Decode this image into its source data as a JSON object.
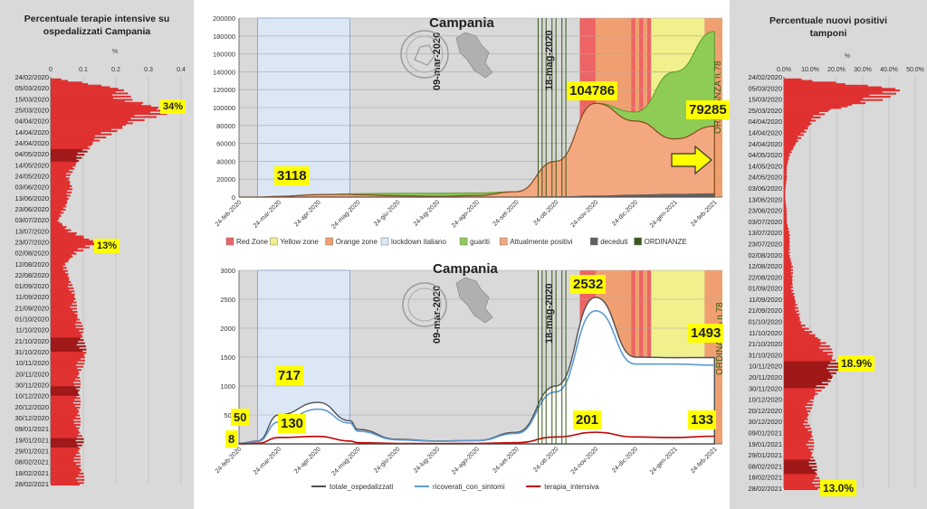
{
  "colors": {
    "red_zone": "#ee6464",
    "yellow_zone": "#f0f08c",
    "orange_zone": "#f0a070",
    "lockdown": "#dbe7f5",
    "guariti": "#8fcc55",
    "positivi": "#f4a880",
    "deceduti": "#606060",
    "ordinanze": "#3a5a1a",
    "bar_red": "#e03030",
    "bar_dark": "#a01818",
    "totale": "#505050",
    "sintomi": "#5b9bd5",
    "terapia": "#c00000",
    "highlight": "#ffff00"
  },
  "left_panel": {
    "title_line1": "Percentuale terapie intensive su",
    "title_line2": "ospedalizzati Campania",
    "unit": "%",
    "ticks": [
      "0",
      "0.1",
      "0.2",
      "0.3",
      "0.4"
    ],
    "tick_values": [
      0,
      0.1,
      0.2,
      0.3,
      0.4
    ],
    "dates": [
      "24/02/2020",
      "05/03/2020",
      "15/03/2020",
      "25/03/2020",
      "04/04/2020",
      "14/04/2020",
      "24/04/2020",
      "04/05/2020",
      "14/05/2020",
      "24/05/2020",
      "03/06/2020",
      "13/06/2020",
      "23/06/2020",
      "03/07/2020",
      "13/07/2020",
      "23/07/2020",
      "02/08/2020",
      "12/08/2020",
      "22/08/2020",
      "01/09/2020",
      "11/09/2020",
      "21/09/2020",
      "01/10/2020",
      "11/10/2020",
      "21/10/2020",
      "31/10/2020",
      "10/11/2020",
      "20/11/2020",
      "30/11/2020",
      "10/12/2020",
      "20/12/2020",
      "30/12/2020",
      "09/01/2021",
      "19/01/2021",
      "29/01/2021",
      "08/02/2021",
      "18/02/2021",
      "28/02/2021"
    ],
    "label_peak": "34%",
    "label_summer": "13%"
  },
  "right_panel": {
    "title_line1": "Percentuale nuovi positivi",
    "title_line2": "tamponi",
    "unit": "%",
    "ticks": [
      "0.0%",
      "10.0%",
      "20.0%",
      "30.0%",
      "40.0%",
      "50.0%"
    ],
    "tick_values": [
      0,
      0.1,
      0.2,
      0.3,
      0.4,
      0.5
    ],
    "dates": [
      "24/02/2020",
      "05/03/2020",
      "15/03/2020",
      "25/03/2020",
      "04/04/2020",
      "14/04/2020",
      "24/04/2020",
      "04/05/2020",
      "14/05/2020",
      "24/05/2020",
      "03/06/2020",
      "13/06/2020",
      "23/06/2020",
      "03/07/2020",
      "13/07/2020",
      "23/07/2020",
      "02/08/2020",
      "12/08/2020",
      "22/08/2020",
      "01/09/2020",
      "11/09/2020",
      "21/09/2020",
      "01/10/2020",
      "11/10/2020",
      "21/10/2020",
      "31/10/2020",
      "10/11/2020",
      "20/11/2020",
      "30/11/2020",
      "10/12/2020",
      "20/12/2020",
      "30/12/2020",
      "09/01/2021",
      "19/01/2021",
      "29/01/2021",
      "08/02/2021",
      "18/02/2021",
      "28/02/2021"
    ],
    "label_peak": "18.9%",
    "label_end": "13.0%"
  },
  "top_chart": {
    "title": "Campania",
    "yticks": [
      "0",
      "20000",
      "40000",
      "60000",
      "80000",
      "100000",
      "120000",
      "140000",
      "160000",
      "180000",
      "200000"
    ],
    "ytick_values": [
      0,
      20000,
      40000,
      60000,
      80000,
      100000,
      120000,
      140000,
      160000,
      180000,
      200000
    ],
    "xticks": [
      "24-feb-2020",
      "24-mar-2020",
      "24-apr-2020",
      "24-mag-2020",
      "24-giu-2020",
      "24-lug-2020",
      "24-ago-2020",
      "24-set-2020",
      "24-ott-2020",
      "24-nov-2020",
      "24-dic-2020",
      "24-gen-2021",
      "24-feb-2021"
    ],
    "vlabel_lockdown_start": "09-mar-2020",
    "vlabel_lockdown_end": "18-mag-2020",
    "vlabel_ordinanza": "ORDINANZA n.78",
    "label_first": "3118",
    "label_peak": "104786",
    "label_last": "79285",
    "legend": [
      "Red Zone",
      "Yellow zone",
      "Orange zone",
      "lockdown italiano",
      "guariti",
      "Attualmente positivi",
      "deceduti",
      "ORDINANZE"
    ]
  },
  "bottom_chart": {
    "title": "Campania",
    "yticks": [
      "0",
      "500",
      "1000",
      "1500",
      "2000",
      "2500",
      "3000"
    ],
    "ytick_values": [
      0,
      500,
      1000,
      1500,
      2000,
      2500,
      3000
    ],
    "xticks": [
      "24-feb-2020",
      "24-mar-2020",
      "24-apr-2020",
      "24-mag-2020",
      "24-giu-2020",
      "24-lug-2020",
      "24-ago-2020",
      "24-set-2020",
      "24-ott-2020",
      "24-nov-2020",
      "24-dic-2020",
      "24-gen-2021",
      "24-feb-2021"
    ],
    "vlabel_lockdown_start": "09-mar-2020",
    "vlabel_lockdown_end": "18-mag-2020",
    "vlabel_ordinanza": "ORDINANZA n.78",
    "label_8": "8",
    "label_50": "50",
    "label_717": "717",
    "label_130": "130",
    "label_2532": "2532",
    "label_201": "201",
    "label_1493": "1493",
    "label_133": "133",
    "legend": [
      "totale_ospedalizzati",
      "ricoverati_con_sintomi",
      "terapia_intensiva"
    ]
  },
  "chart_data": [
    {
      "type": "bar",
      "title": "Percentuale terapie intensive su ospedalizzati Campania",
      "orientation": "horizontal",
      "xlim": [
        0,
        0.4
      ],
      "categories": [
        "24/02/2020",
        "05/03/2020",
        "15/03/2020",
        "25/03/2020",
        "04/04/2020",
        "14/04/2020",
        "24/04/2020",
        "04/05/2020",
        "14/05/2020",
        "24/05/2020",
        "03/06/2020",
        "13/06/2020",
        "23/06/2020",
        "03/07/2020",
        "13/07/2020",
        "23/07/2020",
        "02/08/2020",
        "12/08/2020",
        "22/08/2020",
        "01/09/2020",
        "11/09/2020",
        "21/09/2020",
        "01/10/2020",
        "11/10/2020",
        "21/10/2020",
        "31/10/2020",
        "10/11/2020",
        "20/11/2020",
        "30/11/2020",
        "10/12/2020",
        "20/12/2020",
        "30/12/2020",
        "09/01/2021",
        "19/01/2021",
        "29/01/2021",
        "08/02/2021",
        "18/02/2021",
        "28/02/2021"
      ],
      "values": [
        0,
        0.2,
        0.22,
        0.34,
        0.24,
        0.17,
        0.12,
        0.09,
        0.07,
        0.05,
        0.06,
        0.05,
        0.04,
        0.02,
        0.06,
        0.13,
        0.07,
        0.04,
        0.05,
        0.06,
        0.07,
        0.07,
        0.08,
        0.09,
        0.09,
        0.1,
        0.09,
        0.08,
        0.08,
        0.08,
        0.08,
        0.08,
        0.08,
        0.09,
        0.08,
        0.08,
        0.09,
        0.09
      ]
    },
    {
      "type": "area",
      "title": "Campania",
      "x": [
        "24-feb-2020",
        "09-mar-2020",
        "24-mar-2020",
        "24-apr-2020",
        "18-mag-2020",
        "24-mag-2020",
        "24-giu-2020",
        "24-lug-2020",
        "24-ago-2020",
        "24-set-2020",
        "24-ott-2020",
        "24-nov-2020",
        "24-dic-2020",
        "24-gen-2021",
        "24-feb-2021"
      ],
      "ylim": [
        0,
        200000
      ],
      "series": [
        {
          "name": "guariti",
          "values": [
            0,
            0,
            500,
            2000,
            3500,
            3800,
            4200,
            4300,
            4500,
            6000,
            15000,
            45000,
            95000,
            140000,
            185000
          ]
        },
        {
          "name": "Attualmente positivi",
          "values": [
            0,
            20,
            800,
            2800,
            3118,
            2600,
            1500,
            900,
            1800,
            6000,
            40000,
            104786,
            85000,
            65000,
            79285
          ]
        },
        {
          "name": "deceduti",
          "values": [
            0,
            0,
            20,
            250,
            400,
            420,
            430,
            440,
            450,
            470,
            800,
            1800,
            2800,
            3600,
            4200
          ]
        }
      ]
    },
    {
      "type": "line",
      "title": "Campania",
      "x": [
        "24-feb-2020",
        "09-mar-2020",
        "24-mar-2020",
        "24-apr-2020",
        "18-mag-2020",
        "24-mag-2020",
        "24-giu-2020",
        "24-lug-2020",
        "24-ago-2020",
        "24-set-2020",
        "24-ott-2020",
        "24-nov-2020",
        "24-dic-2020",
        "24-gen-2021",
        "24-feb-2021"
      ],
      "ylim": [
        0,
        3000
      ],
      "series": [
        {
          "name": "totale_ospedalizzati",
          "values": [
            8,
            50,
            500,
            717,
            400,
            250,
            80,
            50,
            60,
            200,
            1000,
            2532,
            1500,
            1490,
            1493
          ]
        },
        {
          "name": "ricoverati_con_sintomi",
          "values": [
            0,
            40,
            380,
            600,
            360,
            220,
            70,
            45,
            55,
            180,
            900,
            2300,
            1380,
            1380,
            1360
          ]
        },
        {
          "name": "terapia_intensiva",
          "values": [
            0,
            10,
            110,
            130,
            50,
            20,
            8,
            6,
            8,
            20,
            120,
            201,
            120,
            110,
            133
          ]
        }
      ]
    },
    {
      "type": "bar",
      "title": "Percentuale nuovi positivi tamponi",
      "orientation": "horizontal",
      "xlim": [
        0,
        0.5
      ],
      "categories": [
        "24/02/2020",
        "05/03/2020",
        "15/03/2020",
        "25/03/2020",
        "04/04/2020",
        "14/04/2020",
        "24/04/2020",
        "04/05/2020",
        "14/05/2020",
        "24/05/2020",
        "03/06/2020",
        "13/06/2020",
        "23/06/2020",
        "03/07/2020",
        "13/07/2020",
        "23/07/2020",
        "02/08/2020",
        "12/08/2020",
        "22/08/2020",
        "01/09/2020",
        "11/09/2020",
        "21/09/2020",
        "01/10/2020",
        "11/10/2020",
        "21/10/2020",
        "31/10/2020",
        "10/11/2020",
        "20/11/2020",
        "30/11/2020",
        "10/12/2020",
        "20/12/2020",
        "30/12/2020",
        "09/01/2021",
        "19/01/2021",
        "29/01/2021",
        "08/02/2021",
        "18/02/2021",
        "28/02/2021"
      ],
      "values": [
        0,
        0.41,
        0.33,
        0.15,
        0.1,
        0.07,
        0.04,
        0.02,
        0.01,
        0.01,
        0.005,
        0.005,
        0.01,
        0.01,
        0.02,
        0.02,
        0.02,
        0.03,
        0.03,
        0.03,
        0.04,
        0.05,
        0.06,
        0.1,
        0.15,
        0.17,
        0.189,
        0.17,
        0.13,
        0.1,
        0.09,
        0.08,
        0.1,
        0.1,
        0.1,
        0.11,
        0.12,
        0.13
      ]
    }
  ]
}
